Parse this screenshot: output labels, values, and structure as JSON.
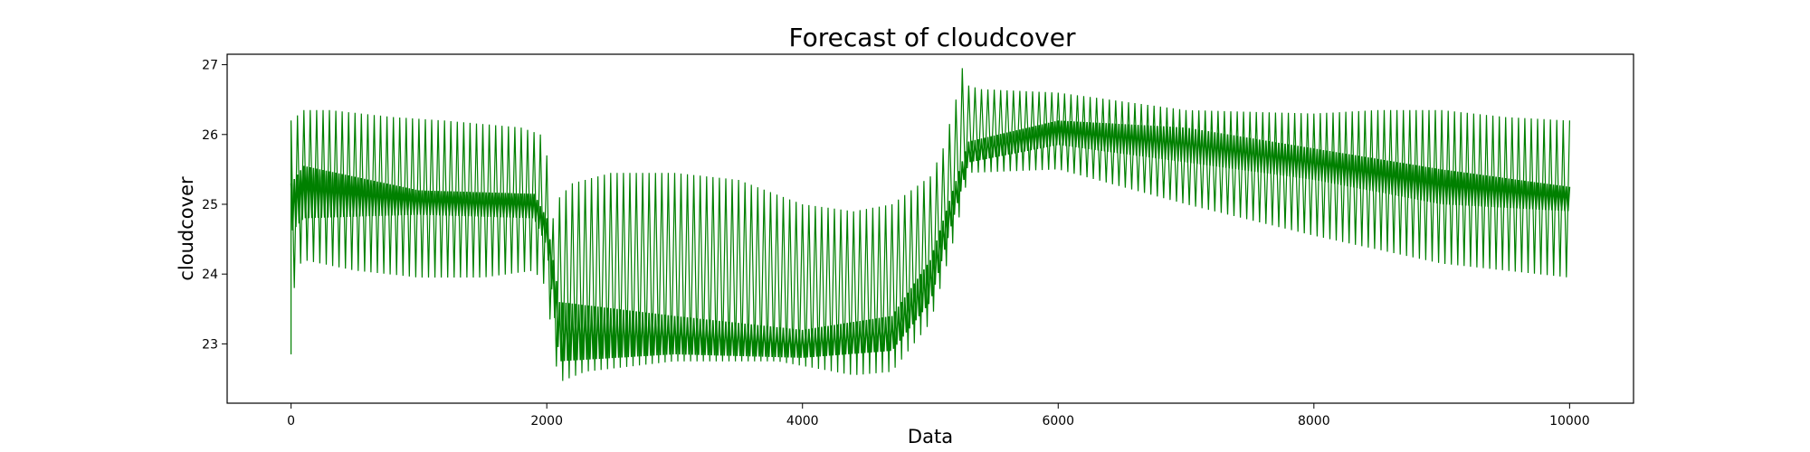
{
  "chart_data": {
    "type": "line",
    "title": "Forecast of cloudcover",
    "xlabel": "Data",
    "ylabel": "cloudcover",
    "xlim": [
      -500,
      10500
    ],
    "ylim": [
      22.15,
      27.15
    ],
    "xticks": [
      0,
      2000,
      4000,
      6000,
      8000,
      10000
    ],
    "yticks": [
      23,
      24,
      25,
      26,
      27
    ],
    "grid": false,
    "legend": "none",
    "series": [
      {
        "color": "#008000",
        "oscillation_period": 50,
        "start": {
          "x": 0,
          "y": 22.85
        },
        "upper_envelope": [
          {
            "x": 0,
            "y": 26.2
          },
          {
            "x": 100,
            "y": 26.35
          },
          {
            "x": 300,
            "y": 26.35
          },
          {
            "x": 800,
            "y": 26.25
          },
          {
            "x": 1200,
            "y": 26.2
          },
          {
            "x": 1800,
            "y": 26.1
          },
          {
            "x": 1950,
            "y": 26.0
          },
          {
            "x": 2000,
            "y": 25.7
          },
          {
            "x": 2050,
            "y": 24.8
          },
          {
            "x": 2100,
            "y": 25.1
          },
          {
            "x": 2200,
            "y": 25.3
          },
          {
            "x": 2500,
            "y": 25.45
          },
          {
            "x": 3000,
            "y": 25.45
          },
          {
            "x": 3500,
            "y": 25.35
          },
          {
            "x": 4000,
            "y": 25.0
          },
          {
            "x": 4400,
            "y": 24.9
          },
          {
            "x": 4700,
            "y": 25.0
          },
          {
            "x": 5000,
            "y": 25.4
          },
          {
            "x": 5100,
            "y": 25.8
          },
          {
            "x": 5200,
            "y": 26.5
          },
          {
            "x": 5250,
            "y": 26.95
          },
          {
            "x": 5300,
            "y": 26.7
          },
          {
            "x": 5400,
            "y": 26.65
          },
          {
            "x": 6000,
            "y": 26.6
          },
          {
            "x": 7000,
            "y": 26.35
          },
          {
            "x": 8000,
            "y": 26.3
          },
          {
            "x": 8500,
            "y": 26.35
          },
          {
            "x": 9000,
            "y": 26.35
          },
          {
            "x": 9500,
            "y": 26.25
          },
          {
            "x": 10000,
            "y": 26.2
          }
        ],
        "lower_envelope": [
          {
            "x": 0,
            "y": 23.5
          },
          {
            "x": 50,
            "y": 24.1
          },
          {
            "x": 100,
            "y": 24.2
          },
          {
            "x": 500,
            "y": 24.05
          },
          {
            "x": 1000,
            "y": 23.95
          },
          {
            "x": 1500,
            "y": 23.95
          },
          {
            "x": 1900,
            "y": 24.05
          },
          {
            "x": 2000,
            "y": 23.8
          },
          {
            "x": 2050,
            "y": 22.9
          },
          {
            "x": 2100,
            "y": 22.45
          },
          {
            "x": 2300,
            "y": 22.6
          },
          {
            "x": 3000,
            "y": 22.75
          },
          {
            "x": 3800,
            "y": 22.75
          },
          {
            "x": 4400,
            "y": 22.55
          },
          {
            "x": 4700,
            "y": 22.6
          },
          {
            "x": 5000,
            "y": 23.3
          },
          {
            "x": 5200,
            "y": 24.6
          },
          {
            "x": 5300,
            "y": 25.45
          },
          {
            "x": 6000,
            "y": 25.5
          },
          {
            "x": 7000,
            "y": 25.0
          },
          {
            "x": 8000,
            "y": 24.55
          },
          {
            "x": 9000,
            "y": 24.15
          },
          {
            "x": 10000,
            "y": 23.95
          }
        ],
        "dense_band_upper": [
          {
            "x": 0,
            "y": 25.3
          },
          {
            "x": 100,
            "y": 25.55
          },
          {
            "x": 1000,
            "y": 25.2
          },
          {
            "x": 1900,
            "y": 25.15
          },
          {
            "x": 2000,
            "y": 24.8
          },
          {
            "x": 2100,
            "y": 23.6
          },
          {
            "x": 3000,
            "y": 23.4
          },
          {
            "x": 4000,
            "y": 23.2
          },
          {
            "x": 4700,
            "y": 23.4
          },
          {
            "x": 5000,
            "y": 24.2
          },
          {
            "x": 5300,
            "y": 25.9
          },
          {
            "x": 6000,
            "y": 26.2
          },
          {
            "x": 7000,
            "y": 26.1
          },
          {
            "x": 8000,
            "y": 25.8
          },
          {
            "x": 9000,
            "y": 25.5
          },
          {
            "x": 10000,
            "y": 25.25
          }
        ],
        "dense_band_lower": [
          {
            "x": 0,
            "y": 24.6
          },
          {
            "x": 100,
            "y": 24.8
          },
          {
            "x": 1000,
            "y": 24.85
          },
          {
            "x": 1900,
            "y": 24.8
          },
          {
            "x": 2000,
            "y": 24.4
          },
          {
            "x": 2100,
            "y": 22.75
          },
          {
            "x": 3000,
            "y": 22.85
          },
          {
            "x": 4000,
            "y": 22.8
          },
          {
            "x": 4700,
            "y": 22.9
          },
          {
            "x": 5000,
            "y": 23.6
          },
          {
            "x": 5300,
            "y": 25.6
          },
          {
            "x": 6000,
            "y": 25.85
          },
          {
            "x": 7000,
            "y": 25.6
          },
          {
            "x": 8000,
            "y": 25.35
          },
          {
            "x": 9000,
            "y": 25.0
          },
          {
            "x": 10000,
            "y": 24.9
          }
        ]
      }
    ]
  }
}
